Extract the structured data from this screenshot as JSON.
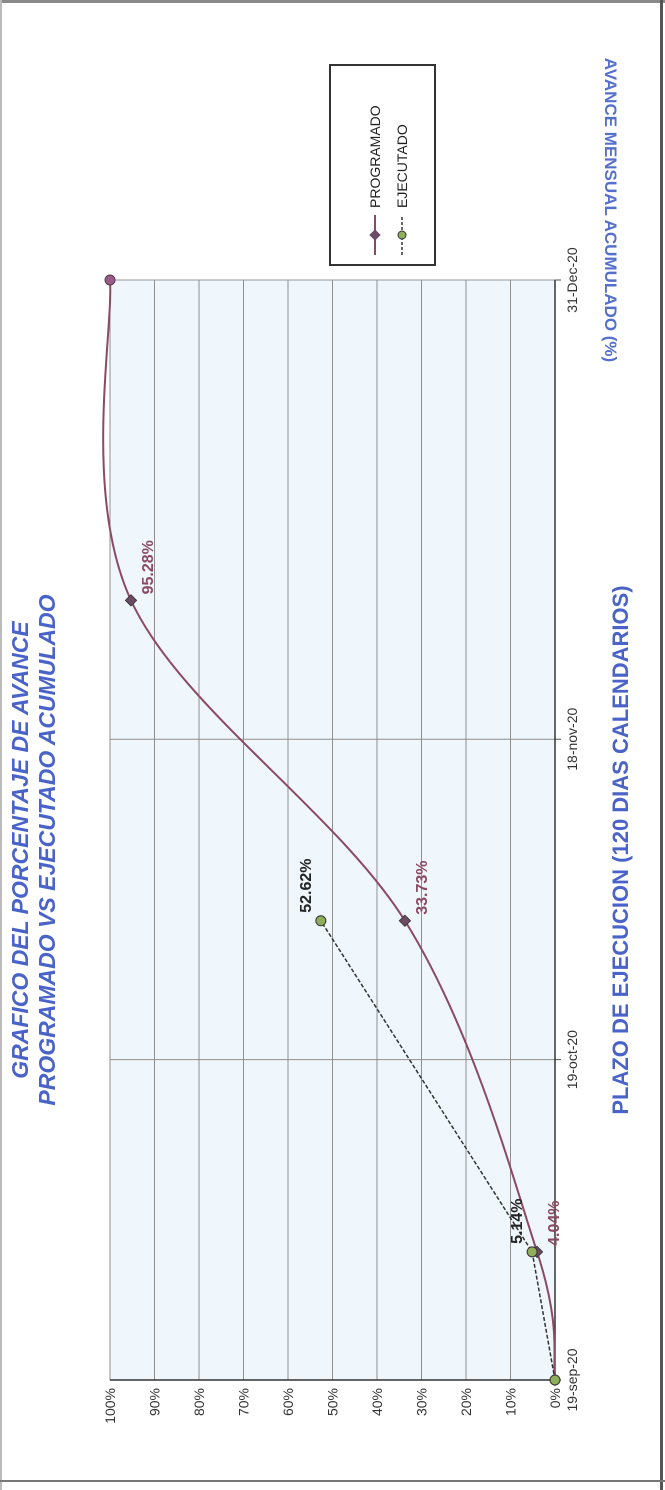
{
  "chart_data": {
    "type": "line",
    "title_lines": [
      "GRAFICO DEL PORCENTAJE DE AVANCE",
      "PROGRAMADO VS EJECUTADO ACUMULADO"
    ],
    "xlabel": "PLAZO DE EJECUCION (120 DIAS CALENDARIOS)",
    "ylabel": "AVANCE MENSUAL ACUMULADO (%)",
    "x_ticks": [
      "19-sep-20",
      "19-oct-20",
      "18-nov-20",
      "31-Dec-20"
    ],
    "y_ticks": [
      "0%",
      "10%",
      "20%",
      "30%",
      "40%",
      "50%",
      "60%",
      "70%",
      "80%",
      "90%",
      "100%"
    ],
    "ylim": [
      0,
      100
    ],
    "grid": true,
    "legend_position": "top-right",
    "legend": [
      "PROGRAMADO",
      "EJECUTADO"
    ],
    "series": [
      {
        "name": "PROGRAMADO",
        "color": "#8a4a64",
        "points": [
          {
            "x": "2020-09-19",
            "y": 0.0
          },
          {
            "x": "2020-10-01",
            "y": 4.04,
            "label": "4.04%"
          },
          {
            "x": "2020-11-01",
            "y": 33.73,
            "label": "33.73%"
          },
          {
            "x": "2020-12-01",
            "y": 95.28,
            "label": "95.28%"
          },
          {
            "x": "2020-12-31",
            "y": 100.0
          }
        ]
      },
      {
        "name": "EJECUTADO",
        "color": "#8fae5a",
        "points": [
          {
            "x": "2020-09-19",
            "y": 0.0
          },
          {
            "x": "2020-10-01",
            "y": 5.14,
            "label": "5.14%"
          },
          {
            "x": "2020-11-01",
            "y": 52.62,
            "label": "52.62%"
          }
        ]
      }
    ]
  }
}
